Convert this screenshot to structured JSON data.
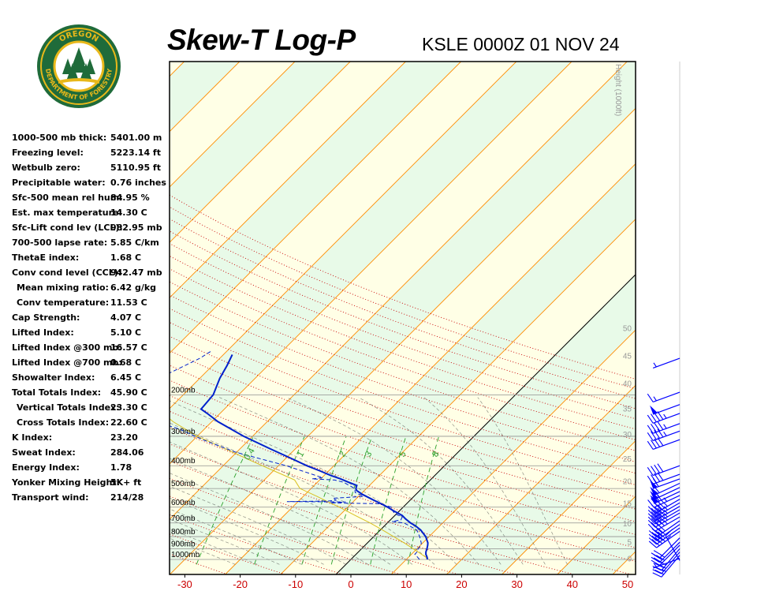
{
  "header": {
    "title": "Skew-T Log-P",
    "station_label": "KSLE 0000Z 01 NOV 24"
  },
  "logo": {
    "top_text": "OREGON",
    "ring_text": "DEPARTMENT OF FORESTRY",
    "colors": {
      "ring": "#1f6b3a",
      "gold": "#e8b81a",
      "tree": "#1f6b3a"
    }
  },
  "indices": [
    {
      "label": "1000-500 mb thick:",
      "value": "5401.00 m",
      "indent": false
    },
    {
      "label": "Freezing level:",
      "value": "5223.14 ft",
      "indent": false
    },
    {
      "label": "Wetbulb zero:",
      "value": "5110.95 ft",
      "indent": false
    },
    {
      "label": "Precipitable water:",
      "value": "0.76 inches",
      "indent": false
    },
    {
      "label": "Sfc-500 mean rel hum:",
      "value": "84.95 %",
      "indent": false
    },
    {
      "label": "Est. max temperature:",
      "value": "14.30 C",
      "indent": false
    },
    {
      "label": "Sfc-Lift cond lev (LCL):",
      "value": "982.95 mb",
      "indent": false
    },
    {
      "label": "700-500 lapse rate:",
      "value": "5.85 C/km",
      "indent": false
    },
    {
      "label": "ThetaE index:",
      "value": "1.68 C",
      "indent": false
    },
    {
      "label": "Conv cond level (CCL):",
      "value": "942.47 mb",
      "indent": false
    },
    {
      "label": "Mean mixing ratio:",
      "value": "6.42 g/kg",
      "indent": true
    },
    {
      "label": "Conv temperature:",
      "value": "11.53 C",
      "indent": true
    },
    {
      "label": "Cap Strength:",
      "value": "4.07 C",
      "indent": false
    },
    {
      "label": "Lifted Index:",
      "value": "5.10 C",
      "indent": false
    },
    {
      "label": "Lifted Index @300 mb:",
      "value": "16.57 C",
      "indent": false
    },
    {
      "label": "Lifted Index @700 mb:",
      "value": "0.68 C",
      "indent": false
    },
    {
      "label": "Showalter Index:",
      "value": "6.45 C",
      "indent": false
    },
    {
      "label": "Total Totals Index:",
      "value": "45.90 C",
      "indent": false
    },
    {
      "label": "Vertical Totals Index:",
      "value": "23.30 C",
      "indent": true
    },
    {
      "label": "Cross Totals Index:",
      "value": "22.60 C",
      "indent": true
    },
    {
      "label": "K Index:",
      "value": "23.20",
      "indent": false
    },
    {
      "label": "Sweat Index:",
      "value": "284.06",
      "indent": false
    },
    {
      "label": "Energy Index:",
      "value": "1.78",
      "indent": false
    },
    {
      "label": "Yonker Mixing Height:",
      "value": "5K+ ft",
      "indent": false
    },
    {
      "label": "Transport wind:",
      "value": "214/28",
      "indent": false
    }
  ],
  "chart_data": {
    "type": "line",
    "title": "Skew-T Log-P",
    "xlabel": "",
    "ylabel": "",
    "x_ticks": [
      -30,
      -20,
      -10,
      0,
      10,
      20,
      30,
      40,
      50
    ],
    "xlim": [
      -33,
      51
    ],
    "pressure_levels": [
      {
        "p": 1000,
        "label": "1000mb"
      },
      {
        "p": 900,
        "label": "900mb"
      },
      {
        "p": 800,
        "label": "800mb"
      },
      {
        "p": 700,
        "label": "700mb"
      },
      {
        "p": 600,
        "label": "600mb"
      },
      {
        "p": 500,
        "label": "500mb"
      },
      {
        "p": 400,
        "label": "400mb"
      },
      {
        "p": 300,
        "label": "300mb"
      },
      {
        "p": 200,
        "label": "200mb"
      }
    ],
    "height_axis": {
      "title": "Height (1000ft)",
      "labels": [
        {
          "v": "0",
          "p": 990
        },
        {
          "v": "5",
          "p": 840
        },
        {
          "v": "10",
          "p": 700
        },
        {
          "v": "15",
          "p": 575
        },
        {
          "v": "20",
          "p": 465
        },
        {
          "v": "25",
          "p": 372
        },
        {
          "v": "30",
          "p": 293
        },
        {
          "v": "35",
          "p": 228
        },
        {
          "v": "40",
          "p": 178
        },
        {
          "v": "45",
          "p": 136
        },
        {
          "v": "50",
          "p": 104
        }
      ]
    },
    "mixing_ratio_labels": [
      "0.4",
      "1",
      "2",
      "3",
      "5",
      "8"
    ],
    "mixing_ratio_values": [
      0.4,
      1,
      2,
      3,
      5,
      8
    ],
    "temperature_profile": [
      {
        "p": 1000,
        "t": 13.8
      },
      {
        "p": 980,
        "t": 13.4
      },
      {
        "p": 950,
        "t": 12.6
      },
      {
        "p": 930,
        "t": 12.2
      },
      {
        "p": 900,
        "t": 11.8
      },
      {
        "p": 870,
        "t": 11.3
      },
      {
        "p": 850,
        "t": 10.9
      },
      {
        "p": 800,
        "t": 9.4
      },
      {
        "p": 750,
        "t": 7.3
      },
      {
        "p": 720,
        "t": 5.6
      },
      {
        "p": 700,
        "t": 4.2
      },
      {
        "p": 670,
        "t": 2.4
      },
      {
        "p": 650,
        "t": 1.3
      },
      {
        "p": 620,
        "t": -1.2
      },
      {
        "p": 600,
        "t": -2.8
      },
      {
        "p": 580,
        "t": -4.6
      },
      {
        "p": 560,
        "t": -6.6
      },
      {
        "p": 530,
        "t": -9.6
      },
      {
        "p": 510,
        "t": -11.4
      },
      {
        "p": 500,
        "t": -11.9
      },
      {
        "p": 485,
        "t": -12.3
      },
      {
        "p": 470,
        "t": -14.4
      },
      {
        "p": 455,
        "t": -16.4
      },
      {
        "p": 440,
        "t": -18.8
      },
      {
        "p": 420,
        "t": -21.7
      },
      {
        "p": 400,
        "t": -24.9
      },
      {
        "p": 370,
        "t": -29.4
      },
      {
        "p": 340,
        "t": -34.4
      },
      {
        "p": 300,
        "t": -41.6
      },
      {
        "p": 260,
        "t": -48.9
      },
      {
        "p": 240,
        "t": -52.3
      },
      {
        "p": 230,
        "t": -54.2
      },
      {
        "p": 200,
        "t": -54.6
      },
      {
        "p": 170,
        "t": -56.4
      },
      {
        "p": 150,
        "t": -57.4
      },
      {
        "p": 135,
        "t": -58.4
      }
    ],
    "dewpoint_profile": [
      {
        "p": 1000,
        "t": 12.4
      },
      {
        "p": 980,
        "t": 11.7
      },
      {
        "p": 950,
        "t": 10.6
      },
      {
        "p": 930,
        "t": 10.6
      },
      {
        "p": 900,
        "t": 10.2
      },
      {
        "p": 870,
        "t": 10.1
      },
      {
        "p": 850,
        "t": 9.7
      },
      {
        "p": 800,
        "t": 8.3
      },
      {
        "p": 750,
        "t": 6.6
      },
      {
        "p": 720,
        "t": 4.5
      },
      {
        "p": 700,
        "t": 3.0
      },
      {
        "p": 690,
        "t": 0.6
      },
      {
        "p": 680,
        "t": 1.9
      },
      {
        "p": 660,
        "t": 1.6
      },
      {
        "p": 640,
        "t": -0.3
      },
      {
        "p": 620,
        "t": -1.3
      },
      {
        "p": 600,
        "t": -2.1
      },
      {
        "p": 580,
        "t": -4.8
      },
      {
        "p": 575,
        "t": -13.9
      },
      {
        "p": 570,
        "t": -11.3
      },
      {
        "p": 568,
        "t": -22.0
      },
      {
        "p": 565,
        "t": -14.6
      },
      {
        "p": 560,
        "t": -13.4
      },
      {
        "p": 550,
        "t": -14.3
      },
      {
        "p": 540,
        "t": -9.1
      },
      {
        "p": 520,
        "t": -11.3
      },
      {
        "p": 500,
        "t": -12.1
      },
      {
        "p": 470,
        "t": -15.3
      },
      {
        "p": 460,
        "t": -17.3
      },
      {
        "p": 455,
        "t": -21.6
      },
      {
        "p": 450,
        "t": -19.8
      },
      {
        "p": 440,
        "t": -21.5
      },
      {
        "p": 400,
        "t": -28.6
      },
      {
        "p": 350,
        "t": -40.3
      },
      {
        "p": 310,
        "t": -48.4
      },
      {
        "p": 280,
        "t": -54.4
      },
      {
        "p": 260,
        "t": -60.1
      },
      {
        "p": 240,
        "t": -63.3
      },
      {
        "p": 220,
        "t": -66.8
      },
      {
        "p": 200,
        "t": -70.0
      },
      {
        "p": 180,
        "t": -68.8
      },
      {
        "p": 160,
        "t": -66.2
      },
      {
        "p": 140,
        "t": -63.6
      },
      {
        "p": 130,
        "t": -62.8
      }
    ],
    "parcel_profile": [
      {
        "p": 1000,
        "t": 13.8
      },
      {
        "p": 980,
        "t": 13.2
      },
      {
        "p": 950,
        "t": 11.8
      },
      {
        "p": 900,
        "t": 9.3
      },
      {
        "p": 850,
        "t": 6.6
      },
      {
        "p": 800,
        "t": 3.6
      },
      {
        "p": 750,
        "t": 0.4
      },
      {
        "p": 700,
        "t": -3.1
      },
      {
        "p": 650,
        "t": -7.2
      },
      {
        "p": 600,
        "t": -11.5
      },
      {
        "p": 570,
        "t": -14.5
      },
      {
        "p": 540,
        "t": -17.5
      },
      {
        "p": 500,
        "t": -22.0
      },
      {
        "p": 460,
        "t": -24.5
      },
      {
        "p": 420,
        "t": -30.0
      },
      {
        "p": 380,
        "t": -36.0
      },
      {
        "p": 340,
        "t": -42.5
      },
      {
        "p": 300,
        "t": -50.0
      },
      {
        "p": 260,
        "t": -57.0
      },
      {
        "p": 230,
        "t": -62.0
      }
    ],
    "winds": [
      {
        "p": 1010,
        "dir": 330,
        "spd": 15
      },
      {
        "p": 990,
        "dir": 250,
        "spd": 5
      },
      {
        "p": 960,
        "dir": 220,
        "spd": 25
      },
      {
        "p": 930,
        "dir": 220,
        "spd": 30
      },
      {
        "p": 900,
        "dir": 220,
        "spd": 30
      },
      {
        "p": 870,
        "dir": 225,
        "spd": 30
      },
      {
        "p": 845,
        "dir": 225,
        "spd": 25
      },
      {
        "p": 810,
        "dir": 225,
        "spd": 20
      },
      {
        "p": 760,
        "dir": 235,
        "spd": 40
      },
      {
        "p": 735,
        "dir": 235,
        "spd": 40
      },
      {
        "p": 710,
        "dir": 235,
        "spd": 40
      },
      {
        "p": 685,
        "dir": 235,
        "spd": 40
      },
      {
        "p": 660,
        "dir": 240,
        "spd": 45
      },
      {
        "p": 635,
        "dir": 240,
        "spd": 45
      },
      {
        "p": 615,
        "dir": 240,
        "spd": 45
      },
      {
        "p": 595,
        "dir": 240,
        "spd": 45
      },
      {
        "p": 575,
        "dir": 240,
        "spd": 45
      },
      {
        "p": 555,
        "dir": 240,
        "spd": 45
      },
      {
        "p": 535,
        "dir": 245,
        "spd": 45
      },
      {
        "p": 515,
        "dir": 245,
        "spd": 55
      },
      {
        "p": 495,
        "dir": 245,
        "spd": 55
      },
      {
        "p": 475,
        "dir": 245,
        "spd": 60
      },
      {
        "p": 455,
        "dir": 250,
        "spd": 60
      },
      {
        "p": 435,
        "dir": 250,
        "spd": 40
      },
      {
        "p": 400,
        "dir": 250,
        "spd": 40
      },
      {
        "p": 310,
        "dir": 250,
        "spd": 40
      },
      {
        "p": 285,
        "dir": 250,
        "spd": 45
      },
      {
        "p": 265,
        "dir": 250,
        "spd": 45
      },
      {
        "p": 240,
        "dir": 250,
        "spd": 45
      },
      {
        "p": 220,
        "dir": 250,
        "spd": 50
      },
      {
        "p": 195,
        "dir": 250,
        "spd": 15
      },
      {
        "p": 140,
        "dir": 250,
        "spd": 5
      }
    ],
    "colors": {
      "temperature": "#0020cc",
      "dewpoint": "#0020cc",
      "parcel": "#d8c020",
      "wind": "#0000ff",
      "isotherm": "#ff8c00",
      "dry_adiabat": "#c80000",
      "moist_adiabat": "#333333",
      "mixing_ratio": "#2aa02a",
      "isobar": "#909090",
      "band_a": "#ffffe6",
      "band_b": "#e8fae8",
      "freezing": "#000000",
      "xtick": "#cc0000"
    },
    "band_width_c": 10,
    "grid": true,
    "legend": "none"
  }
}
